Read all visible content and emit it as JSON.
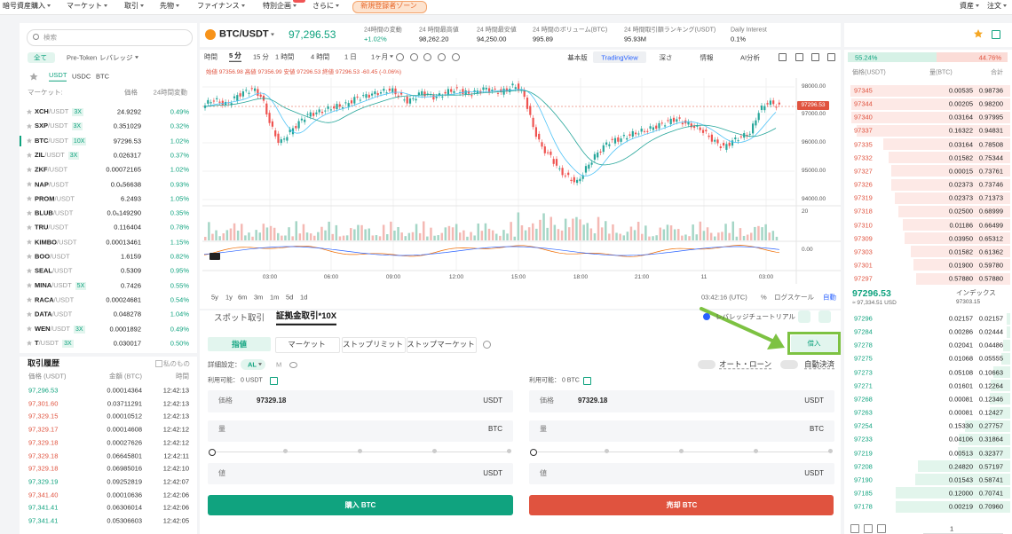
{
  "nav": {
    "items": [
      "暗号資産購入",
      "マーケット",
      "取引",
      "先物",
      "ファイナンス",
      "特別企画",
      "さらに"
    ],
    "promo": "新規登録者ゾーン",
    "right": [
      "資産",
      "注文"
    ]
  },
  "markets": {
    "search": "検索",
    "tabs": [
      "全て",
      "Pre-Token",
      "レバレッジ"
    ],
    "quotes": [
      "USDT",
      "USDC",
      "BTC"
    ],
    "headers": [
      "マーケット:",
      "価格",
      "24時間変動"
    ],
    "rows": [
      {
        "base": "XCH",
        "quote": "/USDT",
        "lev": "3X",
        "price": "24.9292",
        "change": "0.49%"
      },
      {
        "base": "SXP",
        "quote": "/USDT",
        "lev": "3X",
        "price": "0.351029",
        "change": "0.32%"
      },
      {
        "base": "BTC",
        "quote": "/USDT",
        "lev": "10X",
        "price": "97296.53",
        "change": "1.02%"
      },
      {
        "base": "ZIL",
        "quote": "/USDT",
        "lev": "3X",
        "price": "0.026317",
        "change": "0.37%"
      },
      {
        "base": "ZKF",
        "quote": "/USDT",
        "price": "0.00072165",
        "change": "1.02%"
      },
      {
        "base": "NAP",
        "quote": "/USDT",
        "price": "0.0₅56638",
        "change": "0.93%"
      },
      {
        "base": "PROM",
        "quote": "/USDT",
        "price": "6.2493",
        "change": "1.05%"
      },
      {
        "base": "BLUB",
        "quote": "/USDT",
        "price": "0.0₅149290",
        "change": "0.35%"
      },
      {
        "base": "TRU",
        "quote": "/USDT",
        "price": "0.116404",
        "change": "0.78%"
      },
      {
        "base": "KIMBO",
        "quote": "/USDT",
        "price": "0.00013461",
        "change": "1.15%"
      },
      {
        "base": "BOO",
        "quote": "/USDT",
        "price": "1.6159",
        "change": "0.82%"
      },
      {
        "base": "SEAL",
        "quote": "/USDT",
        "price": "0.5309",
        "change": "0.95%"
      },
      {
        "base": "MINA",
        "quote": "/USDT",
        "lev": "5X",
        "price": "0.7426",
        "change": "0.55%"
      },
      {
        "base": "RACA",
        "quote": "/USDT",
        "price": "0.00024681",
        "change": "0.54%"
      },
      {
        "base": "DATA",
        "quote": "/USDT",
        "price": "0.048278",
        "change": "1.04%"
      },
      {
        "base": "WEN",
        "quote": "/USDT",
        "lev": "3X",
        "price": "0.0001892",
        "change": "0.49%"
      },
      {
        "base": "T",
        "quote": "/USDT",
        "lev": "3X",
        "price": "0.030017",
        "change": "0.50%"
      }
    ]
  },
  "trades": {
    "title": "取引履歴",
    "mine": "私のもの",
    "headers": [
      "価格 (USDT)",
      "金額 (BTC)",
      "時間"
    ],
    "rows": [
      {
        "price": "97,296.53",
        "amount": "0.00014364",
        "time": "12:42:13",
        "side": "buy"
      },
      {
        "price": "97,301.60",
        "amount": "0.03711291",
        "time": "12:42:13",
        "side": "sell"
      },
      {
        "price": "97,329.15",
        "amount": "0.00010512",
        "time": "12:42:13",
        "side": "sell"
      },
      {
        "price": "97,329.17",
        "amount": "0.00014608",
        "time": "12:42:12",
        "side": "sell"
      },
      {
        "price": "97,329.18",
        "amount": "0.00027626",
        "time": "12:42:12",
        "side": "sell"
      },
      {
        "price": "97,329.18",
        "amount": "0.06645801",
        "time": "12:42:11",
        "side": "sell"
      },
      {
        "price": "97,329.18",
        "amount": "0.06985016",
        "time": "12:42:10",
        "side": "sell"
      },
      {
        "price": "97,329.19",
        "amount": "0.09252819",
        "time": "12:42:07",
        "side": "buy"
      },
      {
        "price": "97,341.40",
        "amount": "0.00010636",
        "time": "12:42:06",
        "side": "sell"
      },
      {
        "price": "97,341.41",
        "amount": "0.06306014",
        "time": "12:42:06",
        "side": "buy"
      },
      {
        "price": "97,341.41",
        "amount": "0.05306603",
        "time": "12:42:05",
        "side": "buy"
      }
    ]
  },
  "ticker": {
    "pair": "BTC/USDT",
    "price": "97,296.53",
    "stats": [
      {
        "label": "24時間の変動",
        "value": "+1.02%"
      },
      {
        "label": "24 時間最高値",
        "value": "98,262.20"
      },
      {
        "label": "24 時間最安値",
        "value": "94,250.00"
      },
      {
        "label": "24 時間のボリューム(BTC)",
        "value": "995.89"
      },
      {
        "label": "24 時間取引額ランキング(USDT)",
        "value": "95.93M"
      },
      {
        "label": "Daily Interest",
        "value": "0.1%"
      }
    ]
  },
  "chart": {
    "intervals": [
      "時間",
      "5 分",
      "15 分",
      "1 時間",
      "4 時間",
      "1 日",
      "1ヶ月"
    ],
    "views": [
      "基本版",
      "TradingView",
      "深さ",
      "情報",
      "AI分析"
    ],
    "ohlc": "始値 97356.98 高値 97356.99 安値 97296.53 終値 97296.53 -60.45 (-0.06%)",
    "price_axis": [
      "98000.00",
      "97000.00",
      "96000.00",
      "95000.00",
      "94000.00"
    ],
    "last_price": "97296.53",
    "volume_axis": "20",
    "osc_axis": "0.00",
    "time_axis": [
      "03:00",
      "06:00",
      "09:00",
      "12:00",
      "15:00",
      "18:00",
      "21:00",
      "11",
      "03:00"
    ],
    "ranges": [
      "5y",
      "1y",
      "6m",
      "3m",
      "1m",
      "5d",
      "1d"
    ],
    "clock": "03:42:16 (UTC)",
    "percent": "%",
    "log": "ログスケール",
    "auto": "自動"
  },
  "order_form": {
    "tabs": [
      "スポット取引",
      "証拠金取引*10X"
    ],
    "tutorial": "レバレッジチュートリアル",
    "types": [
      "指値",
      "マーケット",
      "ストップリミット",
      "ストップマーケット"
    ],
    "borrow": "借入",
    "settings": "詳細設定：",
    "al": "AL",
    "m": "M",
    "auto_loan": "オート・ローン",
    "auto_settle": "自動決済",
    "buy": {
      "available": "利用可能： 0 USDT",
      "price_label": "価格",
      "price": "97329.18",
      "price_unit": "USDT",
      "qty_label": "量",
      "qty_unit": "BTC",
      "value_label": "値",
      "value_unit": "USDT",
      "button": "購入 BTC"
    },
    "sell": {
      "available": "利用可能： 0 BTC",
      "price_label": "価格",
      "price": "97329.18",
      "price_unit": "USDT",
      "qty_label": "量",
      "qty_unit": "BTC",
      "value_label": "値",
      "value_unit": "USDT",
      "button": "売却 BTC"
    }
  },
  "order_book": {
    "buy_ratio": "55.24%",
    "sell_ratio": "44.76%",
    "headers": [
      "価格(USDT)",
      "量(BTC)",
      "合計"
    ],
    "asks": [
      [
        "97345",
        "0.00535",
        "0.98736"
      ],
      [
        "97344",
        "0.00205",
        "0.98200"
      ],
      [
        "97340",
        "0.03164",
        "0.97995"
      ],
      [
        "97337",
        "0.16322",
        "0.94831"
      ],
      [
        "97335",
        "0.03164",
        "0.78508"
      ],
      [
        "97332",
        "0.01582",
        "0.75344"
      ],
      [
        "97327",
        "0.00015",
        "0.73761"
      ],
      [
        "97326",
        "0.02373",
        "0.73746"
      ],
      [
        "97319",
        "0.02373",
        "0.71373"
      ],
      [
        "97318",
        "0.02500",
        "0.68999"
      ],
      [
        "97310",
        "0.01186",
        "0.66499"
      ],
      [
        "97309",
        "0.03950",
        "0.65312"
      ],
      [
        "97303",
        "0.01582",
        "0.61362"
      ],
      [
        "97301",
        "0.01900",
        "0.59780"
      ],
      [
        "97297",
        "0.57880",
        "0.57880"
      ]
    ],
    "mid": "97296.53",
    "mid_usd": "≈ 97,334.51 USD",
    "index_label": "インデックス",
    "index": "97303.15",
    "bids": [
      [
        "97296",
        "0.02157",
        "0.02157"
      ],
      [
        "97284",
        "0.00286",
        "0.02444"
      ],
      [
        "97278",
        "0.02041",
        "0.04486"
      ],
      [
        "97275",
        "0.01068",
        "0.05555"
      ],
      [
        "97273",
        "0.05108",
        "0.10663"
      ],
      [
        "97271",
        "0.01601",
        "0.12264"
      ],
      [
        "97268",
        "0.00081",
        "0.12346"
      ],
      [
        "97263",
        "0.00081",
        "0.12427"
      ],
      [
        "97254",
        "0.15330",
        "0.27757"
      ],
      [
        "97233",
        "0.04106",
        "0.31864"
      ],
      [
        "97219",
        "0.00513",
        "0.32377"
      ],
      [
        "97208",
        "0.24820",
        "0.57197"
      ],
      [
        "97190",
        "0.01543",
        "0.58741"
      ],
      [
        "97185",
        "0.12000",
        "0.70741"
      ],
      [
        "97178",
        "0.00219",
        "0.70960"
      ]
    ],
    "precision": "1"
  }
}
